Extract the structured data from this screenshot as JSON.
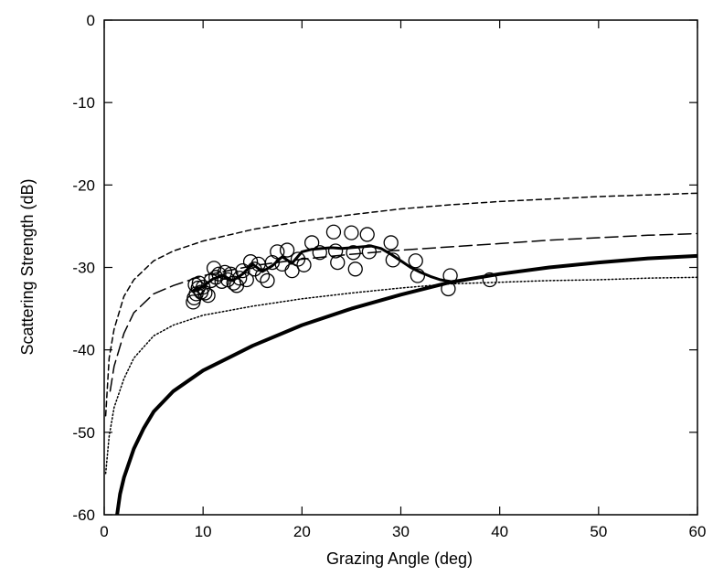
{
  "chart_data": {
    "type": "line",
    "title": "",
    "xlabel": "Grazing Angle (deg)",
    "ylabel": "Scattering Strength (dB)",
    "xlim": [
      0,
      60
    ],
    "ylim": [
      -60,
      0
    ],
    "xticks": [
      "0",
      "10",
      "20",
      "30",
      "40",
      "50",
      "60"
    ],
    "yticks": [
      "0",
      "-10",
      "-20",
      "-30",
      "-40",
      "-50",
      "-60"
    ],
    "grid": false,
    "legend": "none",
    "series": [
      {
        "style": "short-dash",
        "x": [
          0.15,
          0.5,
          1,
          2,
          3,
          5,
          7,
          10,
          15,
          20,
          25,
          30,
          35,
          40,
          45,
          50,
          55,
          60
        ],
        "y": [
          -48,
          -41,
          -37.5,
          -33.5,
          -31.5,
          -29.2,
          -28,
          -26.8,
          -25.4,
          -24.4,
          -23.6,
          -22.9,
          -22.4,
          -22,
          -21.7,
          -21.4,
          -21.2,
          -21
        ]
      },
      {
        "style": "long-dash",
        "x": [
          0.6,
          1,
          2,
          3,
          5,
          7,
          10,
          15,
          20,
          25,
          30,
          35,
          40,
          45,
          50,
          55,
          60
        ],
        "y": [
          -45,
          -42,
          -38,
          -35.5,
          -33.2,
          -32.2,
          -31,
          -29.8,
          -29,
          -28.4,
          -27.9,
          -27.5,
          -27.1,
          -26.7,
          -26.4,
          -26.1,
          -25.9
        ]
      },
      {
        "style": "dotted",
        "x": [
          0.15,
          0.5,
          1,
          2,
          3,
          5,
          7,
          10,
          15,
          20,
          25,
          30,
          35,
          40,
          45,
          50,
          55,
          60
        ],
        "y": [
          -55,
          -50.5,
          -47,
          -43.5,
          -41,
          -38.3,
          -37,
          -35.8,
          -34.7,
          -33.8,
          -33.1,
          -32.5,
          -32,
          -31.8,
          -31.6,
          -31.5,
          -31.3,
          -31.2
        ]
      },
      {
        "style": "thick-solid",
        "x": [
          1.3,
          1.6,
          2,
          3,
          4,
          5,
          7,
          10,
          15,
          20,
          25,
          30,
          35,
          40,
          45,
          50,
          55,
          60
        ],
        "y": [
          -60,
          -57.5,
          -55.5,
          -52,
          -49.5,
          -47.5,
          -45,
          -42.5,
          -39.5,
          -37,
          -35,
          -33.3,
          -31.8,
          -30.8,
          -30,
          -29.4,
          -28.9,
          -28.6
        ]
      },
      {
        "style": "medium-solid",
        "x": [
          9,
          10,
          11,
          12,
          13,
          14,
          15,
          16,
          17,
          18,
          19,
          20,
          21,
          22,
          23,
          24,
          25,
          26,
          27,
          28,
          29,
          30,
          31,
          32,
          33,
          34,
          35
        ],
        "y": [
          -32.8,
          -32.3,
          -31.4,
          -31,
          -31.6,
          -30.8,
          -29.6,
          -30.5,
          -29.8,
          -28.7,
          -29.5,
          -28.1,
          -27.8,
          -27.7,
          -27.6,
          -27.7,
          -27.6,
          -27.5,
          -27.4,
          -27.7,
          -28.4,
          -29.2,
          -30,
          -30.6,
          -31.1,
          -31.5,
          -31.7
        ]
      },
      {
        "style": "open-circles",
        "x": [
          9.0,
          9.1,
          9.2,
          9.3,
          9.5,
          9.6,
          9.8,
          10.0,
          10.2,
          10.5,
          10.8,
          11.1,
          11.3,
          11.6,
          11.9,
          12.2,
          12.5,
          12.8,
          13.1,
          13.4,
          13.7,
          14.0,
          14.4,
          14.8,
          15.2,
          15.6,
          16.0,
          16.5,
          17.0,
          17.5,
          18.0,
          18.5,
          19.0,
          19.6,
          20.2,
          21.0,
          21.8,
          23.2,
          23.4,
          23.6,
          25.0,
          25.2,
          25.4,
          26.6,
          26.8,
          29.0,
          29.2,
          31.5,
          31.7,
          34.8,
          35.0,
          39.0
        ],
        "y": [
          -34.2,
          -33.7,
          -32.1,
          -33.2,
          -32.5,
          -31.9,
          -33.0,
          -32.4,
          -33.1,
          -33.4,
          -31.6,
          -30.1,
          -31.2,
          -30.8,
          -31.7,
          -30.6,
          -31.5,
          -30.8,
          -31.9,
          -32.2,
          -31.3,
          -30.4,
          -31.5,
          -29.3,
          -30.2,
          -29.6,
          -31.0,
          -31.6,
          -29.4,
          -28.1,
          -29.6,
          -27.9,
          -30.4,
          -29.0,
          -29.7,
          -27.0,
          -28.2,
          -25.7,
          -28.0,
          -29.4,
          -25.8,
          -28.2,
          -30.2,
          -26.0,
          -28.1,
          -27.0,
          -29.1,
          -29.2,
          -31.0,
          -32.6,
          -31.0,
          -31.5
        ]
      }
    ]
  }
}
